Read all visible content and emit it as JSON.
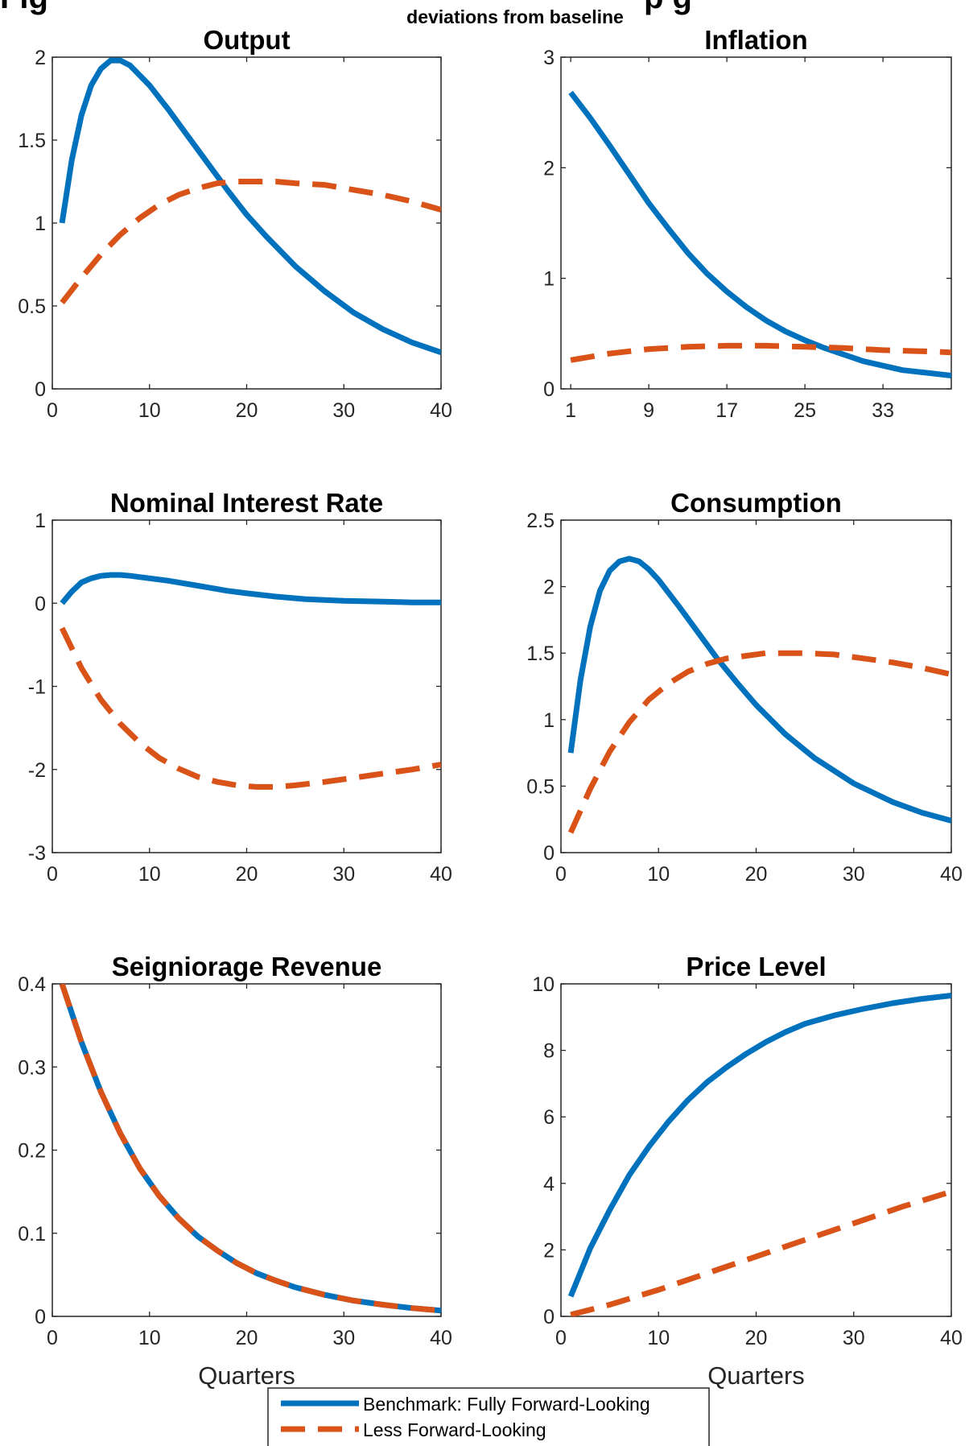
{
  "figure": {
    "title_fragment": "Fig",
    "title_fragment_right": "p  g",
    "subtitle": "deviations from baseline",
    "colors": {
      "benchmark": "#0072BD",
      "less": "#D95319"
    }
  },
  "legend": {
    "entries": [
      "Benchmark: Fully Forward-Looking",
      "Less Forward-Looking"
    ]
  },
  "chart_data": [
    {
      "type": "line",
      "title": "Output",
      "xlabel": "",
      "xlim": [
        0,
        40
      ],
      "ylim": [
        0,
        2
      ],
      "xticks": [
        0,
        10,
        20,
        30,
        40
      ],
      "xtick_labels": [
        "0",
        "10",
        "20",
        "30",
        "40"
      ],
      "yticks": [
        0,
        0.5,
        1,
        1.5,
        2
      ],
      "ytick_labels": [
        "0",
        "0.5",
        "1",
        "1.5",
        "2"
      ],
      "series": [
        {
          "name": "Benchmark: Fully Forward-Looking",
          "style": "solid",
          "x": [
            1,
            2,
            3,
            4,
            5,
            6,
            7,
            8,
            10,
            12,
            14,
            16,
            18,
            20,
            22,
            25,
            28,
            31,
            34,
            37,
            40
          ],
          "y": [
            1.0,
            1.38,
            1.65,
            1.83,
            1.93,
            1.98,
            1.98,
            1.95,
            1.83,
            1.68,
            1.52,
            1.36,
            1.2,
            1.05,
            0.92,
            0.74,
            0.59,
            0.46,
            0.36,
            0.28,
            0.22
          ]
        },
        {
          "name": "Less Forward-Looking",
          "style": "dashed",
          "x": [
            1,
            3,
            5,
            7,
            9,
            11,
            13,
            15,
            17,
            19,
            21,
            23,
            25,
            28,
            31,
            34,
            37,
            40
          ],
          "y": [
            0.52,
            0.67,
            0.81,
            0.93,
            1.03,
            1.11,
            1.17,
            1.21,
            1.24,
            1.25,
            1.25,
            1.25,
            1.24,
            1.23,
            1.2,
            1.17,
            1.13,
            1.08
          ]
        }
      ]
    },
    {
      "type": "line",
      "title": "Inflation",
      "xlabel": "",
      "xlim": [
        0,
        40
      ],
      "ylim": [
        0,
        3
      ],
      "xticks": [
        1,
        9,
        17,
        25,
        33
      ],
      "xtick_labels": [
        "1",
        "9",
        "17",
        "25",
        "33"
      ],
      "yticks": [
        0,
        1,
        2,
        3
      ],
      "ytick_labels": [
        "0",
        "1",
        "2",
        "3"
      ],
      "series": [
        {
          "name": "Benchmark: Fully Forward-Looking",
          "style": "solid",
          "x": [
            1,
            3,
            5,
            7,
            9,
            11,
            13,
            15,
            17,
            19,
            21,
            23,
            25,
            27,
            29,
            31,
            33,
            35,
            37,
            40
          ],
          "y": [
            2.68,
            2.45,
            2.2,
            1.94,
            1.68,
            1.45,
            1.23,
            1.04,
            0.88,
            0.74,
            0.62,
            0.52,
            0.44,
            0.37,
            0.31,
            0.25,
            0.21,
            0.17,
            0.15,
            0.12
          ]
        },
        {
          "name": "Less Forward-Looking",
          "style": "dashed",
          "x": [
            1,
            5,
            9,
            13,
            17,
            21,
            25,
            29,
            33,
            37,
            40
          ],
          "y": [
            0.26,
            0.32,
            0.36,
            0.38,
            0.39,
            0.39,
            0.38,
            0.37,
            0.35,
            0.34,
            0.33
          ]
        }
      ]
    },
    {
      "type": "line",
      "title": "Nominal Interest Rate",
      "xlabel": "",
      "xlim": [
        0,
        40
      ],
      "ylim": [
        -3,
        1
      ],
      "xticks": [
        0,
        10,
        20,
        30,
        40
      ],
      "xtick_labels": [
        "0",
        "10",
        "20",
        "30",
        "40"
      ],
      "yticks": [
        -3,
        -2,
        -1,
        0,
        1
      ],
      "ytick_labels": [
        "-3",
        "-2",
        "-1",
        "0",
        "1"
      ],
      "series": [
        {
          "name": "Benchmark: Fully Forward-Looking",
          "style": "solid",
          "x": [
            1,
            2,
            3,
            4,
            5,
            6,
            7,
            8,
            10,
            12,
            14,
            16,
            18,
            20,
            23,
            26,
            30,
            34,
            37,
            40
          ],
          "y": [
            0.0,
            0.14,
            0.25,
            0.3,
            0.33,
            0.34,
            0.34,
            0.33,
            0.3,
            0.27,
            0.23,
            0.19,
            0.15,
            0.12,
            0.08,
            0.05,
            0.03,
            0.02,
            0.01,
            0.01
          ]
        },
        {
          "name": "Less Forward-Looking",
          "style": "dashed",
          "x": [
            1,
            3,
            5,
            7,
            9,
            11,
            13,
            15,
            17,
            19,
            21,
            23,
            25,
            28,
            31,
            34,
            37,
            40
          ],
          "y": [
            -0.3,
            -0.78,
            -1.16,
            -1.45,
            -1.68,
            -1.86,
            -1.99,
            -2.09,
            -2.15,
            -2.19,
            -2.21,
            -2.21,
            -2.19,
            -2.15,
            -2.1,
            -2.05,
            -2.0,
            -1.94
          ]
        }
      ]
    },
    {
      "type": "line",
      "title": "Consumption",
      "xlabel": "",
      "xlim": [
        0,
        40
      ],
      "ylim": [
        0,
        2.5
      ],
      "xticks": [
        0,
        10,
        20,
        30,
        40
      ],
      "xtick_labels": [
        "0",
        "10",
        "20",
        "30",
        "40"
      ],
      "yticks": [
        0,
        0.5,
        1,
        1.5,
        2,
        2.5
      ],
      "ytick_labels": [
        "0",
        "0.5",
        "1",
        "1.5",
        "2",
        "2.5"
      ],
      "series": [
        {
          "name": "Benchmark: Fully Forward-Looking",
          "style": "solid",
          "x": [
            1,
            2,
            3,
            4,
            5,
            6,
            7,
            8,
            9,
            10,
            12,
            14,
            16,
            18,
            20,
            23,
            26,
            30,
            34,
            37,
            40
          ],
          "y": [
            0.75,
            1.3,
            1.7,
            1.97,
            2.12,
            2.19,
            2.21,
            2.19,
            2.13,
            2.05,
            1.86,
            1.66,
            1.46,
            1.28,
            1.11,
            0.89,
            0.71,
            0.52,
            0.38,
            0.3,
            0.24
          ]
        },
        {
          "name": "Less Forward-Looking",
          "style": "dashed",
          "x": [
            1,
            3,
            5,
            7,
            9,
            11,
            13,
            15,
            17,
            19,
            21,
            23,
            25,
            28,
            31,
            34,
            37,
            40
          ],
          "y": [
            0.15,
            0.48,
            0.76,
            0.98,
            1.15,
            1.27,
            1.36,
            1.42,
            1.46,
            1.48,
            1.5,
            1.5,
            1.5,
            1.49,
            1.46,
            1.43,
            1.39,
            1.34
          ]
        }
      ]
    },
    {
      "type": "line",
      "title": "Seigniorage Revenue",
      "xlabel": "Quarters",
      "xlim": [
        0,
        40
      ],
      "ylim": [
        0,
        0.4
      ],
      "xticks": [
        0,
        10,
        20,
        30,
        40
      ],
      "xtick_labels": [
        "0",
        "10",
        "20",
        "30",
        "40"
      ],
      "yticks": [
        0,
        0.1,
        0.2,
        0.3,
        0.4
      ],
      "ytick_labels": [
        "0",
        "0.1",
        "0.2",
        "0.3",
        "0.4"
      ],
      "series": [
        {
          "name": "Benchmark: Fully Forward-Looking",
          "style": "solid",
          "x": [
            1,
            3,
            5,
            7,
            9,
            11,
            13,
            15,
            17,
            19,
            21,
            23,
            25,
            28,
            31,
            34,
            37,
            40
          ],
          "y": [
            0.4,
            0.33,
            0.27,
            0.22,
            0.178,
            0.145,
            0.118,
            0.096,
            0.079,
            0.064,
            0.052,
            0.043,
            0.035,
            0.026,
            0.019,
            0.014,
            0.01,
            0.007
          ]
        },
        {
          "name": "Less Forward-Looking",
          "style": "dashed",
          "x": [
            1,
            3,
            5,
            7,
            9,
            11,
            13,
            15,
            17,
            19,
            21,
            23,
            25,
            28,
            31,
            34,
            37,
            40
          ],
          "y": [
            0.4,
            0.33,
            0.27,
            0.22,
            0.178,
            0.145,
            0.118,
            0.096,
            0.079,
            0.064,
            0.052,
            0.043,
            0.035,
            0.026,
            0.019,
            0.014,
            0.01,
            0.007
          ]
        }
      ]
    },
    {
      "type": "line",
      "title": "Price Level",
      "xlabel": "Quarters",
      "xlim": [
        0,
        40
      ],
      "ylim": [
        0,
        10
      ],
      "xticks": [
        0,
        10,
        20,
        30,
        40
      ],
      "xtick_labels": [
        "0",
        "10",
        "20",
        "30",
        "40"
      ],
      "yticks": [
        0,
        2,
        4,
        6,
        8,
        10
      ],
      "ytick_labels": [
        "0",
        "2",
        "4",
        "6",
        "8",
        "10"
      ],
      "series": [
        {
          "name": "Benchmark: Fully Forward-Looking",
          "style": "solid",
          "x": [
            1,
            3,
            5,
            7,
            9,
            11,
            13,
            15,
            17,
            19,
            21,
            23,
            25,
            28,
            31,
            34,
            37,
            40
          ],
          "y": [
            0.6,
            2.05,
            3.2,
            4.25,
            5.1,
            5.85,
            6.5,
            7.05,
            7.5,
            7.9,
            8.25,
            8.55,
            8.8,
            9.05,
            9.25,
            9.42,
            9.55,
            9.65
          ]
        },
        {
          "name": "Less Forward-Looking",
          "style": "dashed",
          "x": [
            1,
            5,
            10,
            15,
            20,
            25,
            30,
            35,
            40
          ],
          "y": [
            0.05,
            0.35,
            0.8,
            1.3,
            1.8,
            2.3,
            2.8,
            3.3,
            3.75
          ]
        }
      ]
    }
  ]
}
